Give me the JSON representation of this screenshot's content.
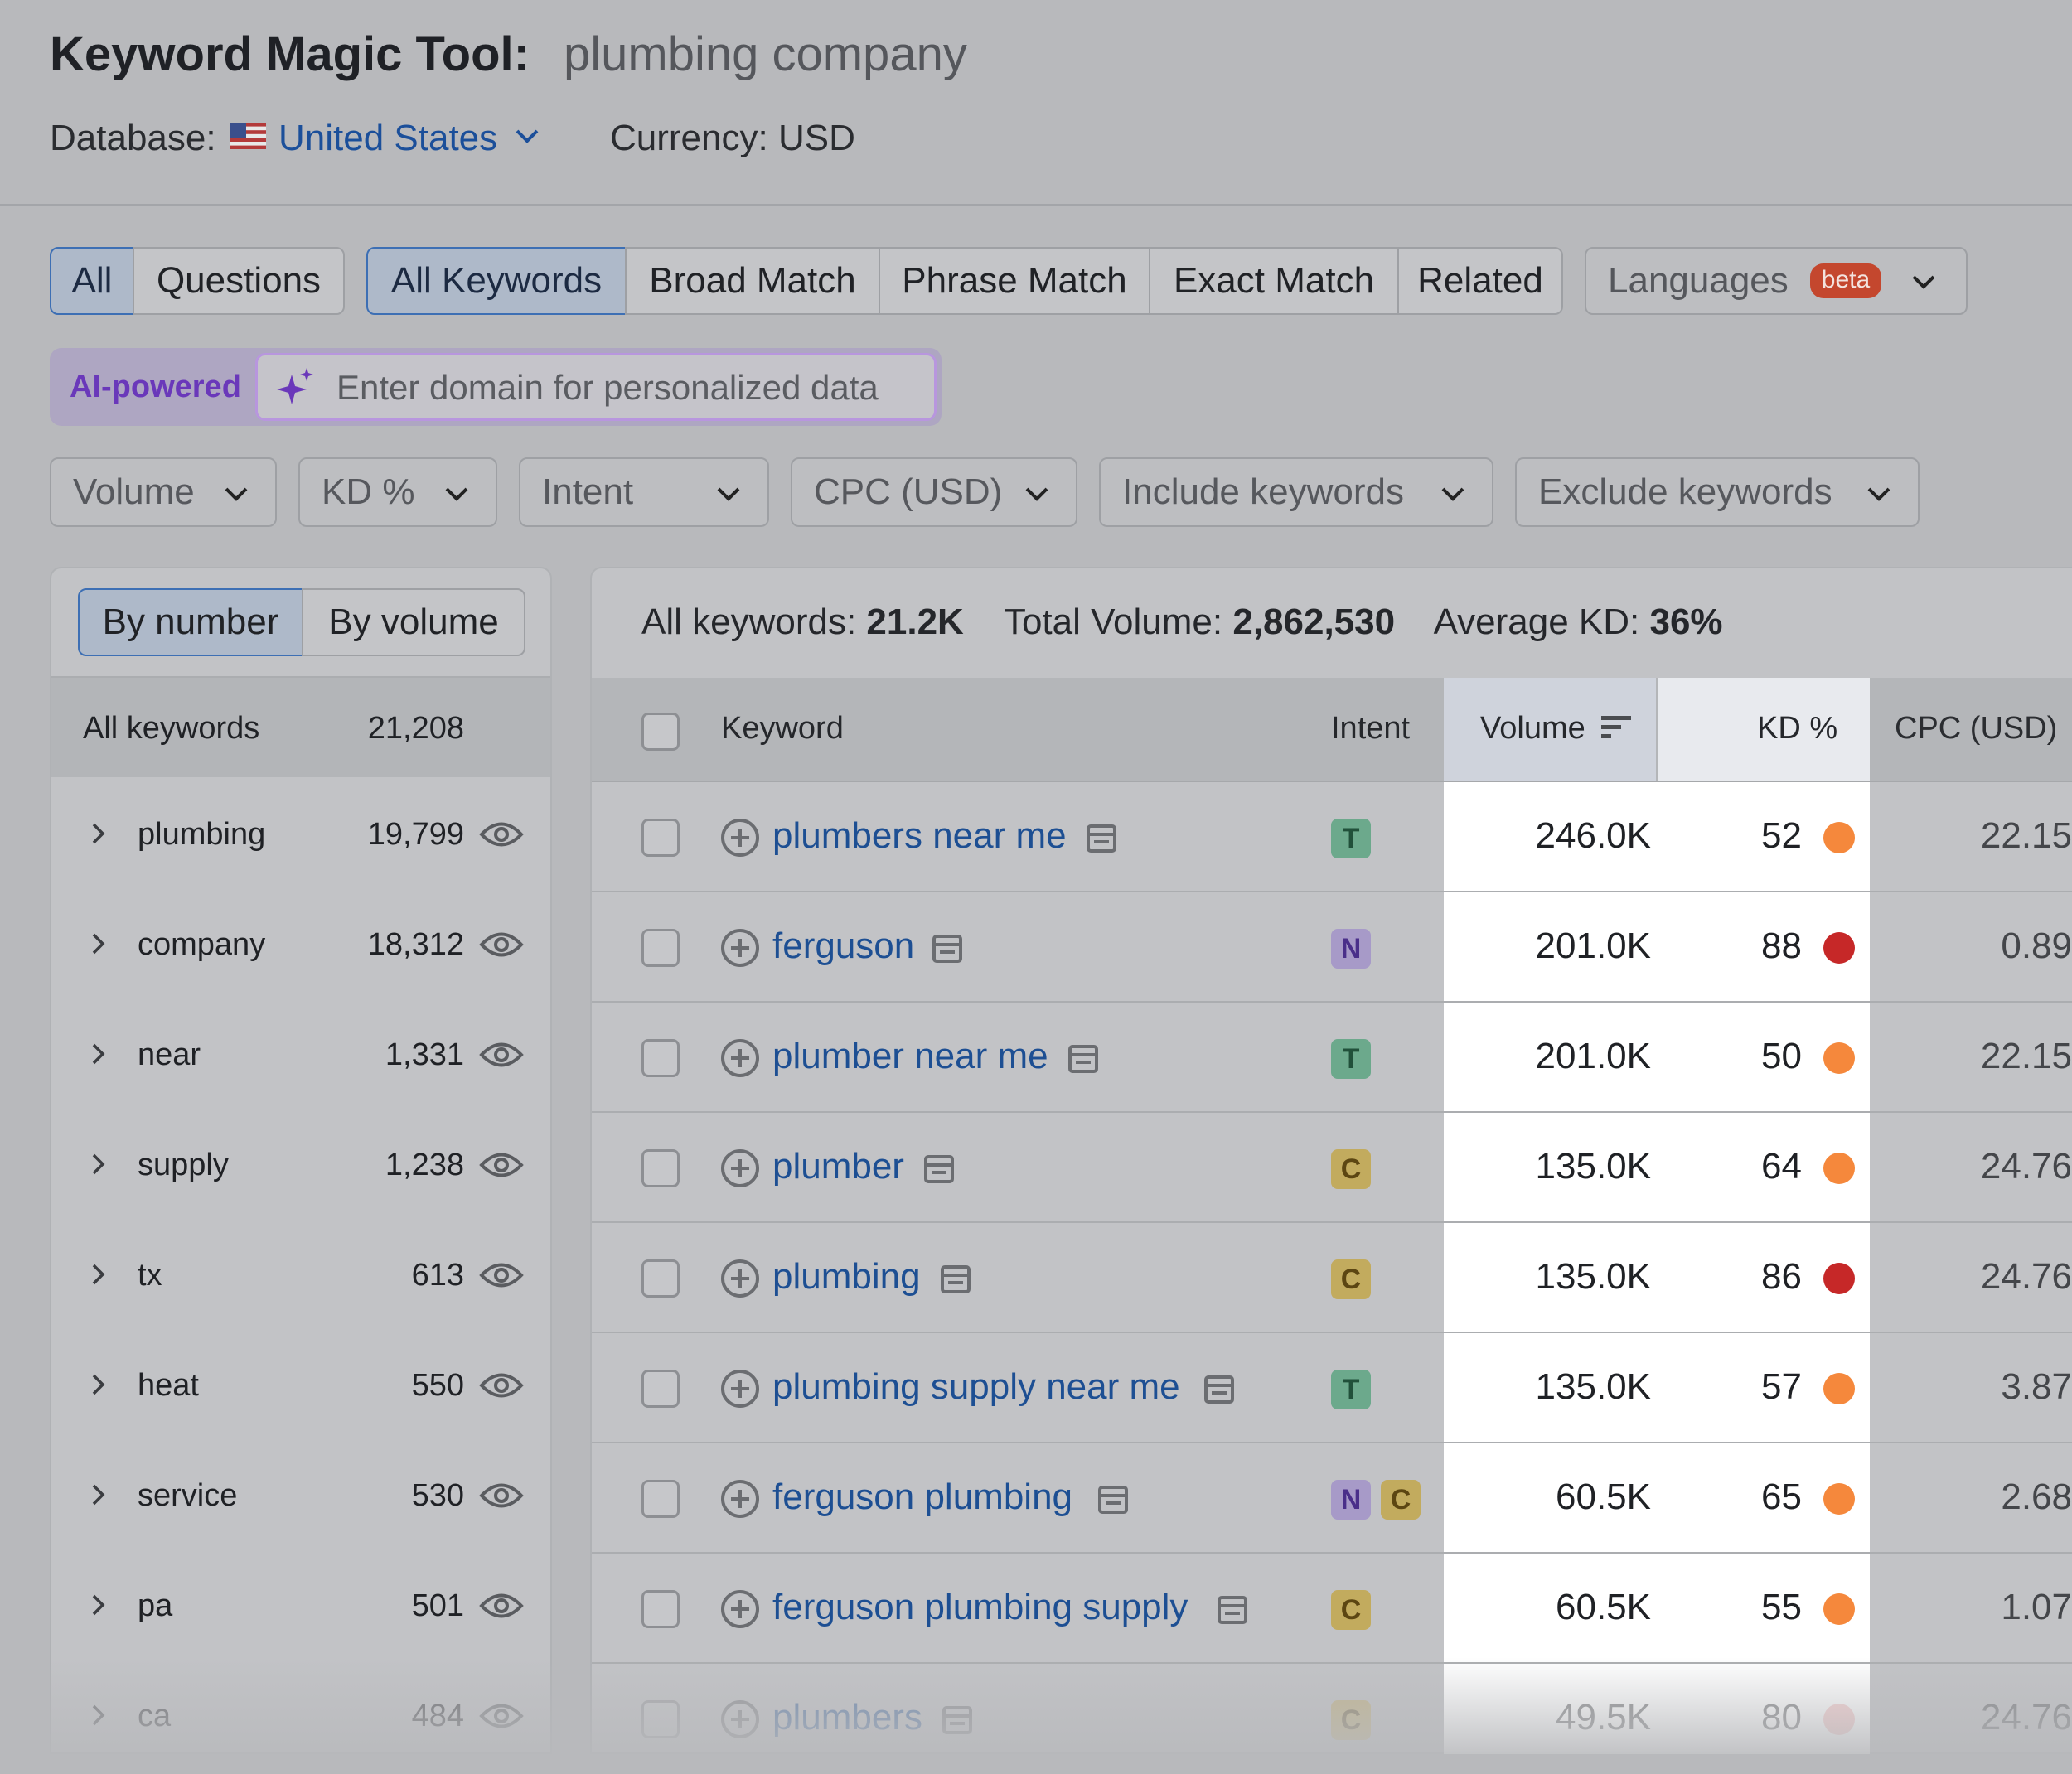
{
  "header": {
    "title": "Keyword Magic Tool:",
    "query": "plumbing company",
    "database_label": "Database:",
    "database_value": "United States",
    "currency": "Currency: USD"
  },
  "scope_tabs": [
    "All",
    "Questions"
  ],
  "match_tabs": [
    "All Keywords",
    "Broad Match",
    "Phrase Match",
    "Exact Match",
    "Related"
  ],
  "languages": {
    "label": "Languages",
    "badge": "beta"
  },
  "ai": {
    "label": "AI-powered",
    "placeholder": "Enter domain for personalized data"
  },
  "filters": [
    "Volume",
    "KD %",
    "Intent",
    "CPC (USD)",
    "Include keywords",
    "Exclude keywords"
  ],
  "groups": {
    "toggle": [
      "By number",
      "By volume"
    ],
    "all_label": "All keywords",
    "all_count": "21,208",
    "items": [
      {
        "word": "plumbing",
        "count": "19,799"
      },
      {
        "word": "company",
        "count": "18,312"
      },
      {
        "word": "near",
        "count": "1,331"
      },
      {
        "word": "supply",
        "count": "1,238"
      },
      {
        "word": "tx",
        "count": "613"
      },
      {
        "word": "heat",
        "count": "550"
      },
      {
        "word": "service",
        "count": "530"
      },
      {
        "word": "pa",
        "count": "501"
      },
      {
        "word": "ca",
        "count": "484"
      }
    ]
  },
  "summary": {
    "all_keywords_label": "All keywords:",
    "all_keywords_value": "21.2K",
    "total_volume_label": "Total Volume:",
    "total_volume_value": "2,862,530",
    "avg_kd_label": "Average KD:",
    "avg_kd_value": "36%"
  },
  "table": {
    "headers": {
      "keyword": "Keyword",
      "intent": "Intent",
      "volume": "Volume",
      "kd": "KD %",
      "cpc": "CPC (USD)"
    },
    "rows": [
      {
        "keyword": "plumbers near me",
        "intent": [
          "T"
        ],
        "volume": "246.0K",
        "kd": "52",
        "kd_color": "#f5883c",
        "cpc": "22.15"
      },
      {
        "keyword": "ferguson",
        "intent": [
          "N"
        ],
        "volume": "201.0K",
        "kd": "88",
        "kd_color": "#c62828",
        "cpc": "0.89"
      },
      {
        "keyword": "plumber near me",
        "intent": [
          "T"
        ],
        "volume": "201.0K",
        "kd": "50",
        "kd_color": "#f5883c",
        "cpc": "22.15"
      },
      {
        "keyword": "plumber",
        "intent": [
          "C"
        ],
        "volume": "135.0K",
        "kd": "64",
        "kd_color": "#f5883c",
        "cpc": "24.76"
      },
      {
        "keyword": "plumbing",
        "intent": [
          "C"
        ],
        "volume": "135.0K",
        "kd": "86",
        "kd_color": "#c62828",
        "cpc": "24.76"
      },
      {
        "keyword": "plumbing supply near me",
        "intent": [
          "T"
        ],
        "volume": "135.0K",
        "kd": "57",
        "kd_color": "#f5883c",
        "cpc": "3.87"
      },
      {
        "keyword": "ferguson plumbing",
        "intent": [
          "N",
          "C"
        ],
        "volume": "60.5K",
        "kd": "65",
        "kd_color": "#f5883c",
        "cpc": "2.68"
      },
      {
        "keyword": "ferguson plumbing supply",
        "intent": [
          "C"
        ],
        "volume": "60.5K",
        "kd": "55",
        "kd_color": "#f5883c",
        "cpc": "1.07"
      },
      {
        "keyword": "plumbers",
        "intent": [
          "C"
        ],
        "volume": "49.5K",
        "kd": "80",
        "kd_color": "#f3a7a7",
        "cpc": "24.76"
      }
    ]
  }
}
